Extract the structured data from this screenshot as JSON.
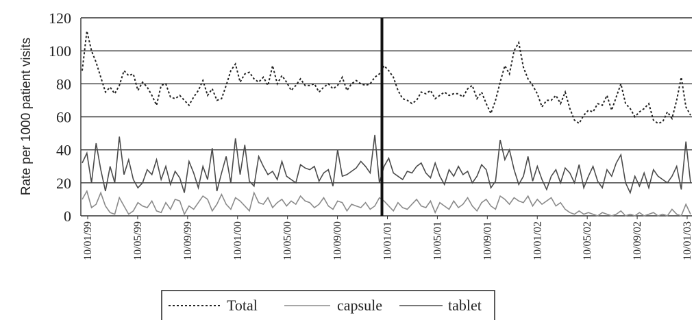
{
  "chart_data": {
    "type": "line",
    "ylabel": "Rate per 1000 patient visits",
    "xlabel": "",
    "ylim": [
      0,
      120
    ],
    "y_ticks": [
      "0",
      "20",
      "40",
      "60",
      "80",
      "100",
      "120"
    ],
    "x_tick_labels": [
      "10/01/99",
      "10/05/99",
      "10/09/99",
      "10/01/00",
      "10/05/00",
      "10/09/00",
      "10/01/01",
      "10/05/01",
      "10/09/01",
      "10/01/02",
      "10/05/02",
      "10/09/02",
      "10/01/03"
    ],
    "grid": "horizontal",
    "vertical_marker_at": "10/01/01",
    "legend_position": "bottom",
    "series": [
      {
        "name": "Total",
        "style": "dashed",
        "color": "#222222",
        "values": [
          88,
          112,
          100,
          93,
          84,
          75,
          78,
          74,
          79,
          88,
          85,
          86,
          76,
          81,
          78,
          73,
          67,
          79,
          80,
          72,
          71,
          73,
          70,
          67,
          72,
          76,
          82,
          73,
          77,
          70,
          71,
          79,
          88,
          92,
          81,
          86,
          87,
          83,
          81,
          84,
          79,
          91,
          80,
          85,
          81,
          76,
          79,
          83,
          79,
          79,
          80,
          75,
          78,
          80,
          77,
          79,
          84,
          76,
          80,
          82,
          80,
          79,
          80,
          84,
          86,
          91,
          88,
          84,
          76,
          71,
          70,
          68,
          70,
          75,
          74,
          76,
          71,
          73,
          75,
          73,
          74,
          74,
          72,
          77,
          79,
          71,
          75,
          68,
          62,
          70,
          81,
          91,
          86,
          100,
          105,
          90,
          83,
          79,
          74,
          66,
          70,
          70,
          73,
          68,
          75,
          65,
          58,
          56,
          61,
          64,
          63,
          68,
          67,
          73,
          64,
          72,
          80,
          68,
          65,
          60,
          63,
          65,
          68,
          58,
          56,
          57,
          63,
          59,
          70,
          84,
          66,
          61
        ]
      },
      {
        "name": "capsule",
        "style": "solid",
        "color": "#8a8a8a",
        "values": [
          10,
          15,
          5,
          7,
          14,
          6,
          2,
          1,
          11,
          6,
          1,
          3,
          8,
          6,
          5,
          9,
          3,
          2,
          8,
          4,
          10,
          9,
          1,
          6,
          4,
          8,
          12,
          10,
          3,
          7,
          13,
          7,
          4,
          11,
          9,
          6,
          3,
          14,
          8,
          7,
          11,
          5,
          8,
          10,
          6,
          9,
          7,
          12,
          9,
          8,
          5,
          7,
          11,
          6,
          4,
          9,
          8,
          3,
          7,
          6,
          5,
          8,
          4,
          6,
          11,
          9,
          6,
          3,
          8,
          5,
          4,
          7,
          10,
          6,
          5,
          9,
          2,
          8,
          6,
          4,
          9,
          5,
          7,
          11,
          6,
          3,
          8,
          10,
          6,
          4,
          12,
          10,
          7,
          11,
          9,
          8,
          12,
          6,
          10,
          7,
          9,
          11,
          6,
          8,
          4,
          2,
          1,
          3,
          1,
          2,
          1,
          0,
          2,
          1,
          0,
          1,
          3,
          0,
          1,
          0,
          2,
          0,
          1,
          2,
          0,
          1,
          0,
          4,
          1,
          0,
          7,
          1
        ]
      },
      {
        "name": "tablet",
        "style": "solid",
        "color": "#4a4a4a",
        "values": [
          32,
          38,
          20,
          44,
          28,
          15,
          30,
          20,
          48,
          25,
          34,
          22,
          17,
          20,
          28,
          25,
          34,
          22,
          30,
          19,
          27,
          23,
          14,
          33,
          26,
          17,
          30,
          22,
          41,
          15,
          26,
          36,
          20,
          47,
          25,
          43,
          21,
          18,
          36,
          30,
          25,
          27,
          22,
          33,
          24,
          22,
          20,
          31,
          29,
          28,
          30,
          21,
          26,
          28,
          18,
          40,
          24,
          25,
          27,
          29,
          33,
          30,
          26,
          49,
          20,
          30,
          35,
          26,
          24,
          22,
          27,
          26,
          30,
          32,
          26,
          23,
          32,
          24,
          19,
          28,
          24,
          30,
          25,
          27,
          20,
          24,
          31,
          28,
          17,
          21,
          46,
          34,
          40,
          28,
          19,
          24,
          36,
          21,
          30,
          22,
          16,
          24,
          28,
          20,
          29,
          26,
          20,
          31,
          17,
          24,
          30,
          21,
          17,
          28,
          24,
          32,
          37,
          20,
          14,
          24,
          18,
          26,
          17,
          28,
          24,
          22,
          20,
          24,
          30,
          16,
          45,
          20
        ]
      }
    ]
  }
}
